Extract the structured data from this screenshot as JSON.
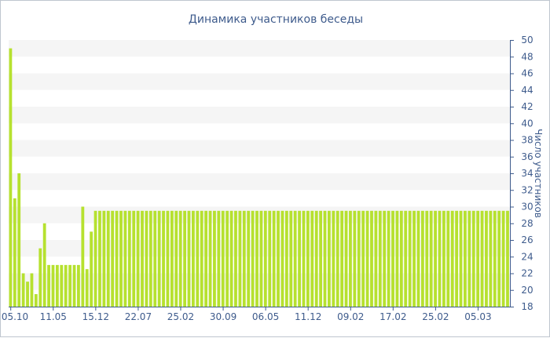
{
  "chart_data": {
    "type": "bar",
    "title": "Динамика участников беседы",
    "ylabel": "Число участников",
    "xlabel": "",
    "ylim": [
      18,
      50
    ],
    "y_ticks": [
      18,
      20,
      22,
      24,
      26,
      28,
      30,
      32,
      34,
      36,
      38,
      40,
      42,
      44,
      46,
      48,
      50
    ],
    "x_tick_labels": [
      "05.10",
      "11.05",
      "15.12",
      "22.07",
      "25.02",
      "30.09",
      "06.05",
      "11.12",
      "09.02",
      "17.02",
      "25.02",
      "05.03"
    ],
    "x_tick_indices": [
      0,
      10,
      20,
      30,
      40,
      50,
      60,
      70,
      80,
      90,
      100,
      110
    ],
    "grid": "horizontal alternating bands",
    "colors": {
      "bar": "#b6e12f",
      "band": "#f5f5f5",
      "text": "#3e5b8c",
      "axis": "#3e5b8c"
    },
    "values": [
      49,
      31,
      34,
      22,
      21,
      22,
      19.5,
      25,
      28,
      23,
      23,
      23,
      23,
      23,
      23,
      23,
      23,
      30,
      22.5,
      27,
      29.5,
      29.5,
      29.5,
      29.5,
      29.5,
      29.5,
      29.5,
      29.5,
      29.5,
      29.5,
      29.5,
      29.5,
      29.5,
      29.5,
      29.5,
      29.5,
      29.5,
      29.5,
      29.5,
      29.5,
      29.5,
      29.5,
      29.5,
      29.5,
      29.5,
      29.5,
      29.5,
      29.5,
      29.5,
      29.5,
      29.5,
      29.5,
      29.5,
      29.5,
      29.5,
      29.5,
      29.5,
      29.5,
      29.5,
      29.5,
      29.5,
      29.5,
      29.5,
      29.5,
      29.5,
      29.5,
      29.5,
      29.5,
      29.5,
      29.5,
      29.5,
      29.5,
      29.5,
      29.5,
      29.5,
      29.5,
      29.5,
      29.5,
      29.5,
      29.5,
      29.5,
      29.5,
      29.5,
      29.5,
      29.5,
      29.5,
      29.5,
      29.5,
      29.5,
      29.5,
      29.5,
      29.5,
      29.5,
      29.5,
      29.5,
      29.5,
      29.5,
      29.5,
      29.5,
      29.5,
      29.5,
      29.5,
      29.5,
      29.5,
      29.5,
      29.5,
      29.5,
      29.5,
      29.5,
      29.5,
      29.5,
      29.5,
      29.5,
      29.5,
      29.5,
      29.5,
      29.5,
      29.5
    ]
  }
}
